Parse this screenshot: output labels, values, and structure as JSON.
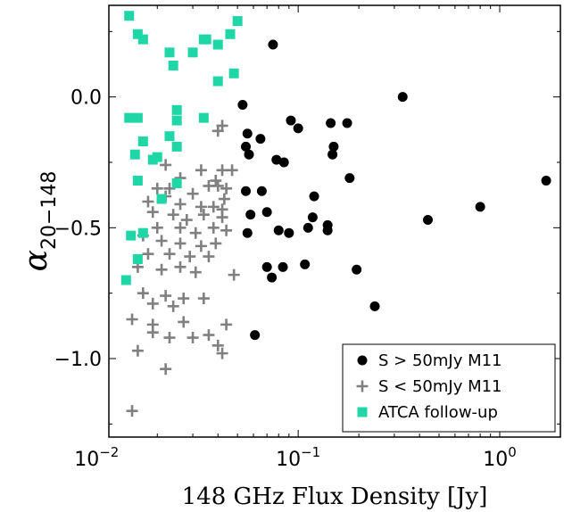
{
  "chart_data": {
    "type": "scatter",
    "xlabel": "148 GHz Flux Density [Jy]",
    "ylabel": "α",
    "ylabel_subscript": "20−148",
    "xscale": "log",
    "xlim": [
      0.0115,
      2.0
    ],
    "ylim": [
      -1.3,
      0.35
    ],
    "x_ticks": [
      {
        "value": 0.01,
        "base": "10",
        "exp": "−2"
      },
      {
        "value": 0.1,
        "base": "10",
        "exp": "−1"
      },
      {
        "value": 1,
        "label": "10",
        "exp": "0"
      }
    ],
    "y_ticks": [
      {
        "value": 0.0,
        "label": "0.0"
      },
      {
        "value": -0.5,
        "label": "−0.5"
      },
      {
        "value": -1.0,
        "label": "−1.0"
      }
    ],
    "legend_position": "bottom-right",
    "series": [
      {
        "name": "S > 50mJy M11",
        "marker": "circle",
        "color": "#000000",
        "points": [
          [
            0.075,
            0.2
          ],
          [
            0.33,
            0.0
          ],
          [
            0.053,
            -0.03
          ],
          [
            0.092,
            -0.09
          ],
          [
            0.1,
            -0.12
          ],
          [
            0.056,
            -0.14
          ],
          [
            0.065,
            -0.16
          ],
          [
            0.145,
            -0.1
          ],
          [
            0.175,
            -0.1
          ],
          [
            0.055,
            -0.19
          ],
          [
            0.057,
            -0.22
          ],
          [
            0.15,
            -0.19
          ],
          [
            0.148,
            -0.22
          ],
          [
            0.078,
            -0.24
          ],
          [
            0.085,
            -0.25
          ],
          [
            0.18,
            -0.31
          ],
          [
            1.7,
            -0.32
          ],
          [
            0.055,
            -0.36
          ],
          [
            0.066,
            -0.36
          ],
          [
            0.12,
            -0.38
          ],
          [
            0.8,
            -0.42
          ],
          [
            0.07,
            -0.44
          ],
          [
            0.058,
            -0.45
          ],
          [
            0.118,
            -0.46
          ],
          [
            0.44,
            -0.47
          ],
          [
            0.14,
            -0.49
          ],
          [
            0.056,
            -0.52
          ],
          [
            0.08,
            -0.51
          ],
          [
            0.112,
            -0.5
          ],
          [
            0.14,
            -0.51
          ],
          [
            0.09,
            -0.52
          ],
          [
            0.07,
            -0.65
          ],
          [
            0.108,
            -0.64
          ],
          [
            0.084,
            -0.65
          ],
          [
            0.074,
            -0.69
          ],
          [
            0.195,
            -0.66
          ],
          [
            0.24,
            -0.8
          ],
          [
            0.061,
            -0.91
          ]
        ]
      },
      {
        "name": "S < 50mJy M11",
        "marker": "plus",
        "color": "#808080",
        "points": [
          [
            0.042,
            -0.11
          ],
          [
            0.04,
            -0.13
          ],
          [
            0.022,
            -0.26
          ],
          [
            0.033,
            -0.28
          ],
          [
            0.042,
            -0.28
          ],
          [
            0.047,
            -0.28
          ],
          [
            0.026,
            -0.31
          ],
          [
            0.039,
            -0.32
          ],
          [
            0.02,
            -0.35
          ],
          [
            0.023,
            -0.35
          ],
          [
            0.036,
            -0.34
          ],
          [
            0.04,
            -0.34
          ],
          [
            0.044,
            -0.35
          ],
          [
            0.022,
            -0.38
          ],
          [
            0.03,
            -0.37
          ],
          [
            0.043,
            -0.39
          ],
          [
            0.018,
            -0.4
          ],
          [
            0.026,
            -0.41
          ],
          [
            0.033,
            -0.42
          ],
          [
            0.038,
            -0.42
          ],
          [
            0.042,
            -0.43
          ],
          [
            0.019,
            -0.44
          ],
          [
            0.024,
            -0.45
          ],
          [
            0.028,
            -0.47
          ],
          [
            0.034,
            -0.45
          ],
          [
            0.042,
            -0.46
          ],
          [
            0.02,
            -0.5
          ],
          [
            0.026,
            -0.5
          ],
          [
            0.031,
            -0.52
          ],
          [
            0.038,
            -0.5
          ],
          [
            0.044,
            -0.51
          ],
          [
            0.017,
            -0.53
          ],
          [
            0.021,
            -0.55
          ],
          [
            0.026,
            -0.56
          ],
          [
            0.033,
            -0.57
          ],
          [
            0.039,
            -0.56
          ],
          [
            0.018,
            -0.6
          ],
          [
            0.023,
            -0.6
          ],
          [
            0.029,
            -0.61
          ],
          [
            0.036,
            -0.61
          ],
          [
            0.016,
            -0.65
          ],
          [
            0.021,
            -0.66
          ],
          [
            0.026,
            -0.65
          ],
          [
            0.031,
            -0.67
          ],
          [
            0.048,
            -0.68
          ],
          [
            0.017,
            -0.75
          ],
          [
            0.022,
            -0.76
          ],
          [
            0.027,
            -0.77
          ],
          [
            0.034,
            -0.77
          ],
          [
            0.019,
            -0.79
          ],
          [
            0.024,
            -0.8
          ],
          [
            0.015,
            -0.85
          ],
          [
            0.019,
            -0.87
          ],
          [
            0.027,
            -0.86
          ],
          [
            0.044,
            -0.87
          ],
          [
            0.019,
            -0.9
          ],
          [
            0.023,
            -0.92
          ],
          [
            0.03,
            -0.92
          ],
          [
            0.036,
            -0.91
          ],
          [
            0.04,
            -0.95
          ],
          [
            0.042,
            -0.98
          ],
          [
            0.016,
            -0.97
          ],
          [
            0.022,
            -1.04
          ],
          [
            0.015,
            -1.2
          ]
        ]
      },
      {
        "name": "ATCA follow-up",
        "marker": "square",
        "color": "#1fd6a6",
        "points": [
          [
            0.0145,
            0.31
          ],
          [
            0.016,
            0.24
          ],
          [
            0.017,
            0.22
          ],
          [
            0.05,
            0.29
          ],
          [
            0.046,
            0.24
          ],
          [
            0.035,
            0.22
          ],
          [
            0.034,
            0.22
          ],
          [
            0.023,
            0.17
          ],
          [
            0.03,
            0.17
          ],
          [
            0.04,
            0.2
          ],
          [
            0.024,
            0.12
          ],
          [
            0.048,
            0.09
          ],
          [
            0.04,
            0.06
          ],
          [
            0.025,
            -0.05
          ],
          [
            0.0145,
            -0.08
          ],
          [
            0.016,
            -0.08
          ],
          [
            0.034,
            -0.08
          ],
          [
            0.025,
            -0.09
          ],
          [
            0.023,
            -0.15
          ],
          [
            0.017,
            -0.17
          ],
          [
            0.025,
            -0.19
          ],
          [
            0.0155,
            -0.22
          ],
          [
            0.019,
            -0.24
          ],
          [
            0.02,
            -0.23
          ],
          [
            0.016,
            -0.32
          ],
          [
            0.025,
            -0.33
          ],
          [
            0.021,
            -0.39
          ],
          [
            0.0148,
            -0.53
          ],
          [
            0.017,
            -0.52
          ],
          [
            0.016,
            -0.62
          ],
          [
            0.014,
            -0.7
          ]
        ]
      }
    ]
  }
}
